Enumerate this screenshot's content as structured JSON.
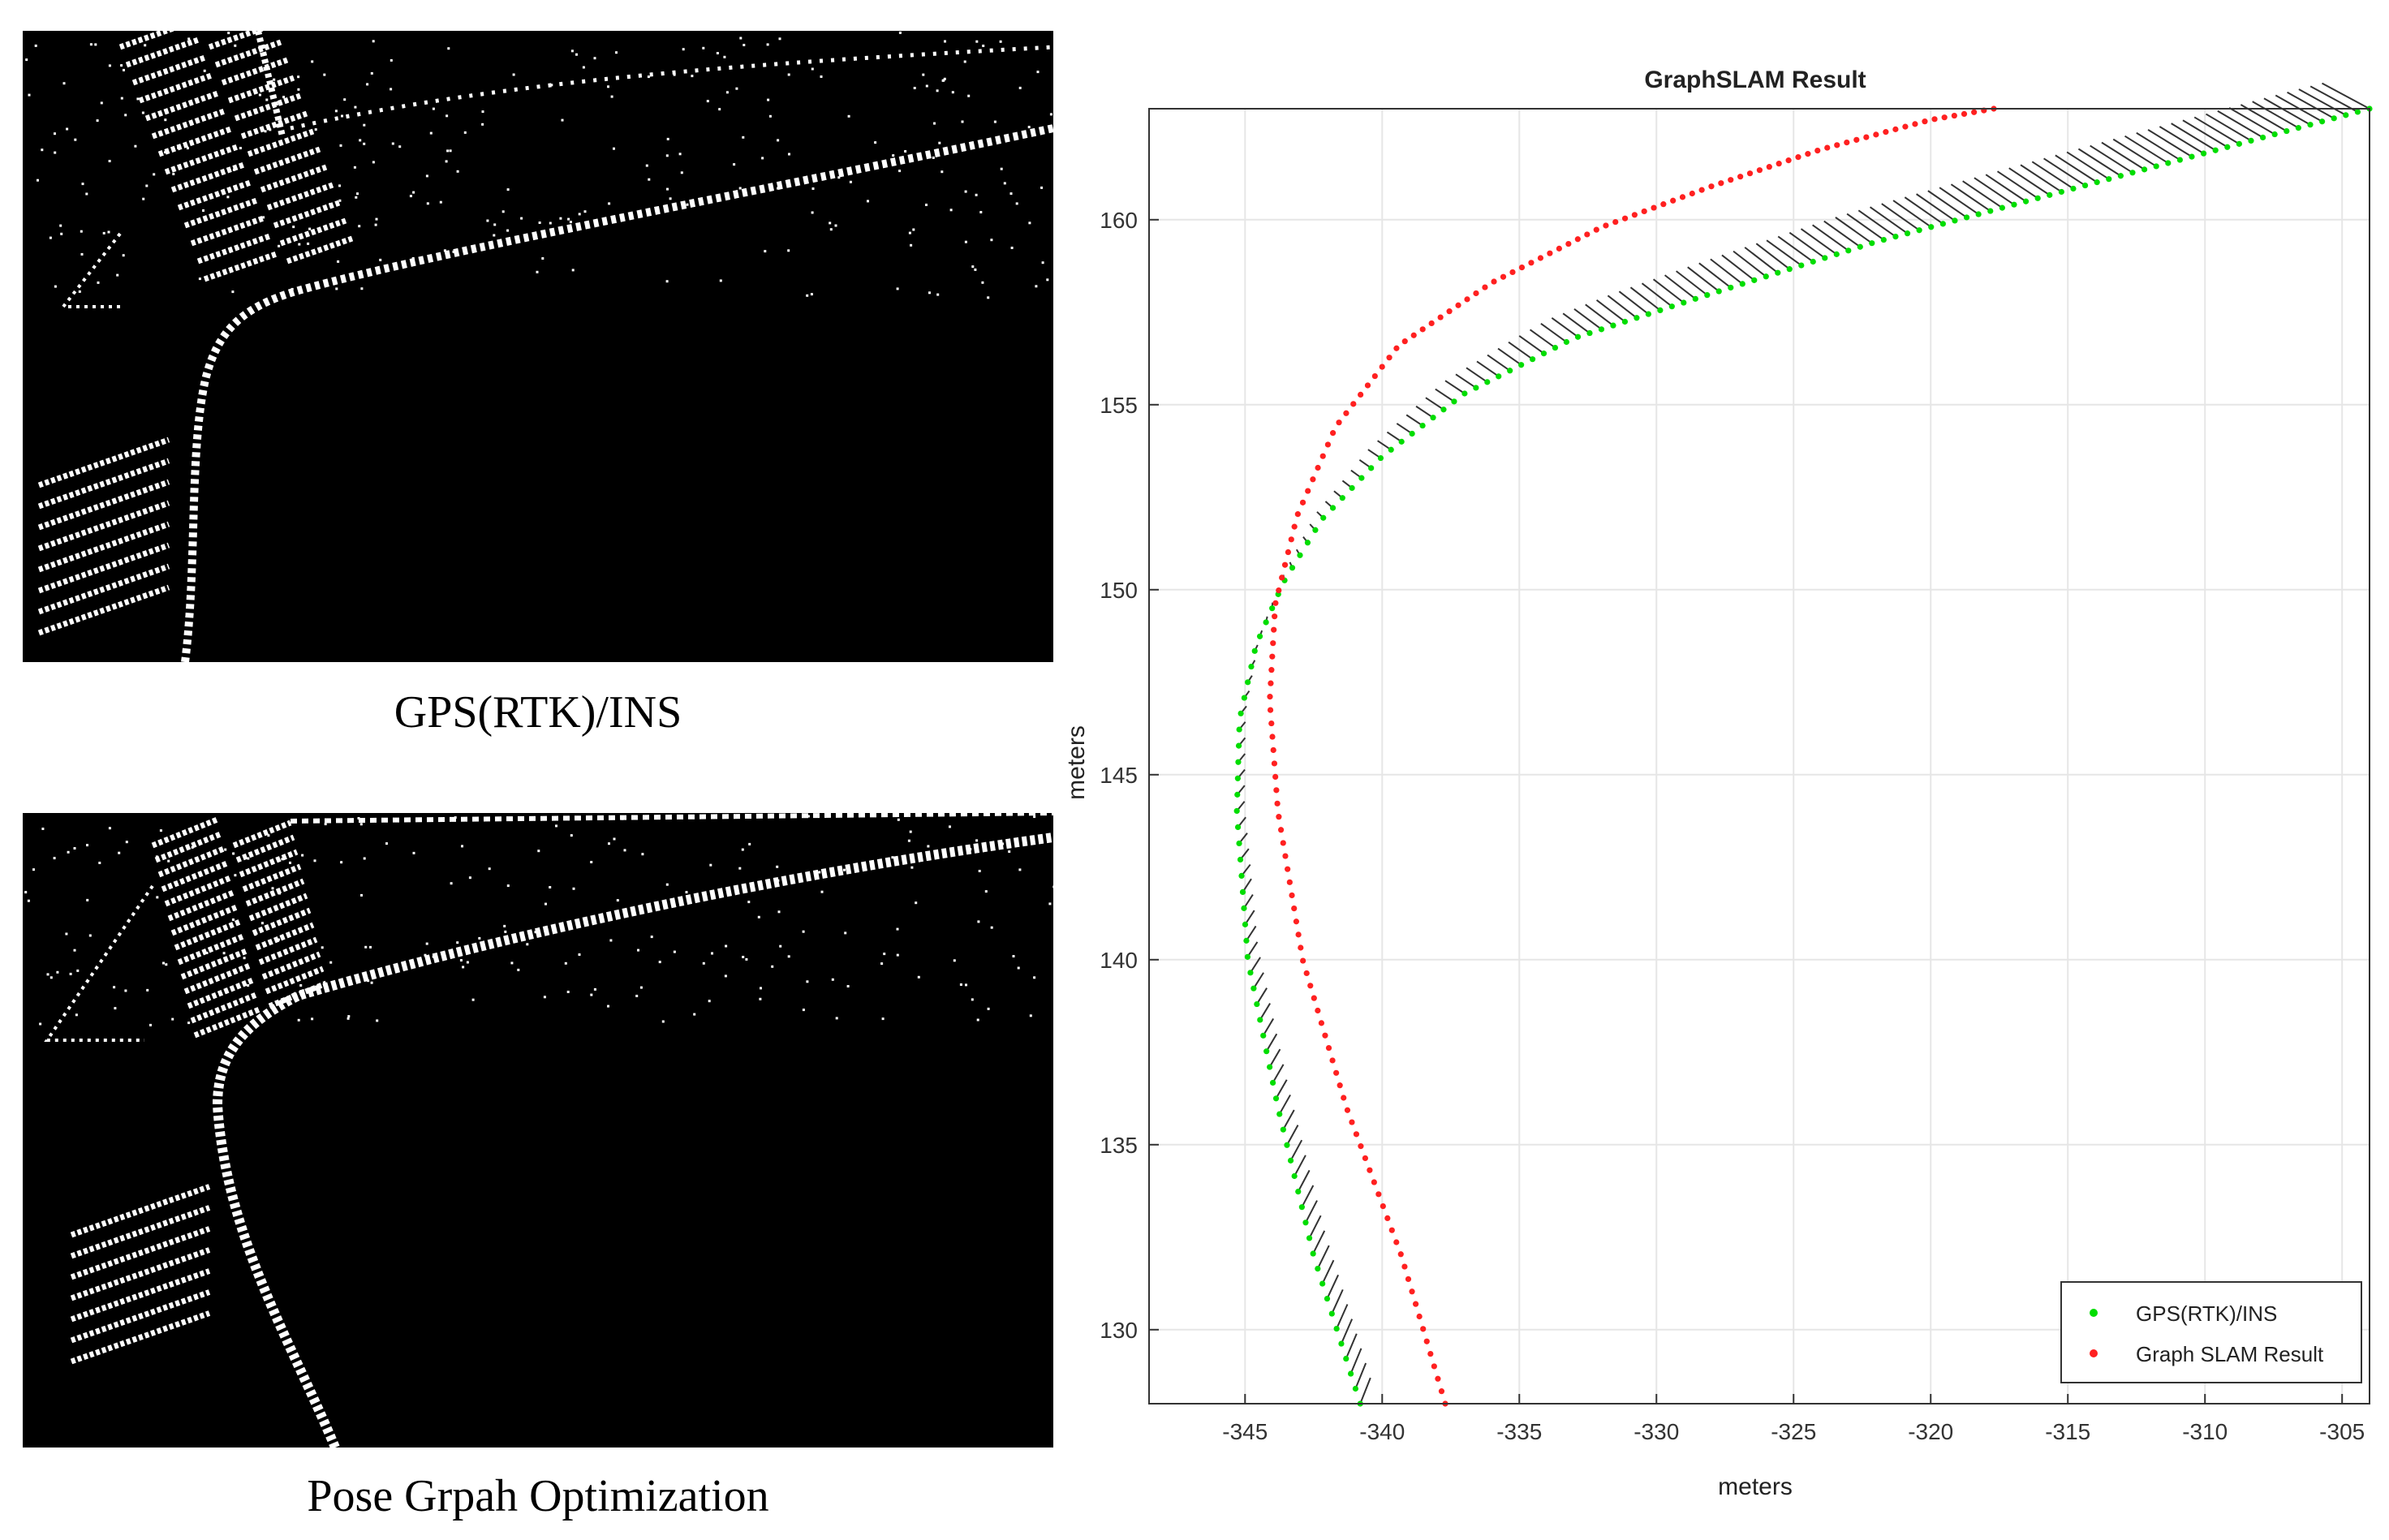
{
  "left_panels": {
    "top_caption": "GPS(RTK)/INS",
    "bottom_caption": "Pose Grpah Optimization"
  },
  "colors": {
    "gps": "#00dd00",
    "slam": "#ff2020",
    "links": "#333333",
    "grid": "#e6e6e6",
    "map_bg": "#000000",
    "map_fg": "#ffffff"
  },
  "chart_data": {
    "type": "scatter",
    "title": "GraphSLAM Result",
    "xlabel": "meters",
    "ylabel": "meters",
    "xlim": [
      -348.5,
      -304
    ],
    "ylim": [
      128,
      163
    ],
    "xticks": [
      -345,
      -340,
      -335,
      -330,
      -325,
      -320,
      -315,
      -310,
      -305
    ],
    "yticks": [
      130,
      135,
      140,
      145,
      150,
      155,
      160
    ],
    "grid": true,
    "legend_position": "bottom-right",
    "series": [
      {
        "name": "GPS(RTK)/INS",
        "color": "#00dd00",
        "x": [
          -340.8,
          -342.5,
          -343.8,
          -344.9,
          -345.3,
          -345.2,
          -344.6,
          -343.6,
          -342.2,
          -340.0,
          -337.0,
          -333.0,
          -328.0,
          -322.0,
          -316.0,
          -310.0,
          -304.0
        ],
        "y": [
          128.0,
          132.0,
          136.0,
          140.0,
          144.0,
          146.5,
          148.5,
          150.2,
          151.9,
          153.6,
          155.3,
          156.8,
          158.0,
          159.4,
          160.6,
          161.8,
          163.0
        ]
      },
      {
        "name": "Graph SLAM Result",
        "color": "#ff2020",
        "x": [
          -337.7,
          -339.3,
          -341.3,
          -342.9,
          -343.8,
          -344.1,
          -343.9,
          -343.1,
          -341.7,
          -339.4,
          -336.0,
          -332.0,
          -328.0,
          -324.0,
          -320.0,
          -317.7
        ],
        "y": [
          128.0,
          132.0,
          136.0,
          140.0,
          144.0,
          147.0,
          149.6,
          152.0,
          154.4,
          156.6,
          158.3,
          159.8,
          160.9,
          161.9,
          162.7,
          163.0
        ]
      }
    ]
  }
}
